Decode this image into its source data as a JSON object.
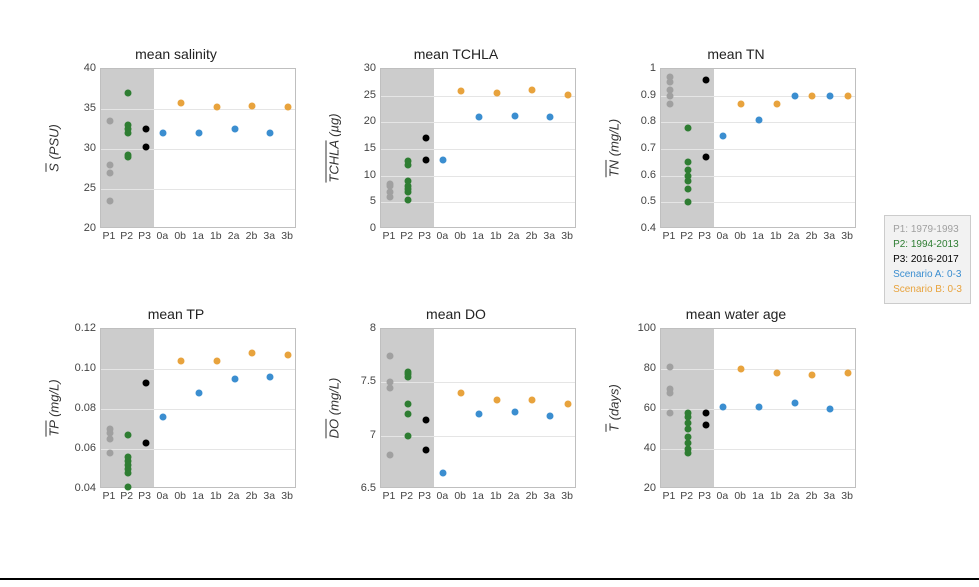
{
  "colors": {
    "p1": "#a0a0a0",
    "p2": "#2e7d32",
    "p3": "#000000",
    "scenA": "#3b8ed0",
    "scenB": "#e8a33d",
    "grid": "#e5e5e5",
    "axis": "#bfbfbf",
    "shade": "#bfbfbf"
  },
  "categories": [
    "P1",
    "P2",
    "P3",
    "0a",
    "0b",
    "1a",
    "1b",
    "2a",
    "2b",
    "3a",
    "3b"
  ],
  "shade_cats": 3,
  "legend": [
    {
      "label": "P1: 1979-1993",
      "color": "#a0a0a0"
    },
    {
      "label": "P2: 1994-2013",
      "color": "#2e7d32"
    },
    {
      "label": "P3: 2016-2017",
      "color": "#000000"
    },
    {
      "label": "Scenario A: 0-3",
      "color": "#3b8ed0"
    },
    {
      "label": "Scenario B: 0-3",
      "color": "#e8a33d"
    }
  ],
  "panels": [
    {
      "title": "mean salinity",
      "ylabel_bar": "S",
      "ylabel_unit": "(PSU)",
      "ylim": [
        20,
        40
      ],
      "ytick_step": 5,
      "points": [
        {
          "cat": "P1",
          "y": 23.5,
          "c": "p1"
        },
        {
          "cat": "P1",
          "y": 27.0,
          "c": "p1"
        },
        {
          "cat": "P1",
          "y": 28.0,
          "c": "p1"
        },
        {
          "cat": "P1",
          "y": 33.5,
          "c": "p1"
        },
        {
          "cat": "P2",
          "y": 29.0,
          "c": "p2"
        },
        {
          "cat": "P2",
          "y": 29.3,
          "c": "p2"
        },
        {
          "cat": "P2",
          "y": 32.0,
          "c": "p2"
        },
        {
          "cat": "P2",
          "y": 32.5,
          "c": "p2"
        },
        {
          "cat": "P2",
          "y": 33.0,
          "c": "p2"
        },
        {
          "cat": "P2",
          "y": 37.0,
          "c": "p2"
        },
        {
          "cat": "P3",
          "y": 30.2,
          "c": "p3"
        },
        {
          "cat": "P3",
          "y": 32.5,
          "c": "p3"
        },
        {
          "cat": "0a",
          "y": 32.0,
          "c": "scenA"
        },
        {
          "cat": "0b",
          "y": 35.8,
          "c": "scenB"
        },
        {
          "cat": "1a",
          "y": 32.0,
          "c": "scenA"
        },
        {
          "cat": "1b",
          "y": 35.2,
          "c": "scenB"
        },
        {
          "cat": "2a",
          "y": 32.5,
          "c": "scenA"
        },
        {
          "cat": "2b",
          "y": 35.4,
          "c": "scenB"
        },
        {
          "cat": "3a",
          "y": 32.0,
          "c": "scenA"
        },
        {
          "cat": "3b",
          "y": 35.3,
          "c": "scenB"
        }
      ]
    },
    {
      "title": "mean TCHLA",
      "ylabel_bar": "TCHLA",
      "ylabel_unit": "(µg)",
      "ylim": [
        0,
        30
      ],
      "ytick_step": 5,
      "points": [
        {
          "cat": "P1",
          "y": 6.0,
          "c": "p1"
        },
        {
          "cat": "P1",
          "y": 7.0,
          "c": "p1"
        },
        {
          "cat": "P1",
          "y": 8.0,
          "c": "p1"
        },
        {
          "cat": "P1",
          "y": 8.5,
          "c": "p1"
        },
        {
          "cat": "P2",
          "y": 5.5,
          "c": "p2"
        },
        {
          "cat": "P2",
          "y": 7.0,
          "c": "p2"
        },
        {
          "cat": "P2",
          "y": 7.5,
          "c": "p2"
        },
        {
          "cat": "P2",
          "y": 8.0,
          "c": "p2"
        },
        {
          "cat": "P2",
          "y": 9.0,
          "c": "p2"
        },
        {
          "cat": "P2",
          "y": 12.0,
          "c": "p2"
        },
        {
          "cat": "P2",
          "y": 12.8,
          "c": "p2"
        },
        {
          "cat": "P3",
          "y": 13.0,
          "c": "p3"
        },
        {
          "cat": "P3",
          "y": 17.0,
          "c": "p3"
        },
        {
          "cat": "0a",
          "y": 13.0,
          "c": "scenA"
        },
        {
          "cat": "0b",
          "y": 25.8,
          "c": "scenB"
        },
        {
          "cat": "1a",
          "y": 21.0,
          "c": "scenA"
        },
        {
          "cat": "1b",
          "y": 25.5,
          "c": "scenB"
        },
        {
          "cat": "2a",
          "y": 21.2,
          "c": "scenA"
        },
        {
          "cat": "2b",
          "y": 26.0,
          "c": "scenB"
        },
        {
          "cat": "3a",
          "y": 21.0,
          "c": "scenA"
        },
        {
          "cat": "3b",
          "y": 25.2,
          "c": "scenB"
        }
      ]
    },
    {
      "title": "mean TN",
      "ylabel_bar": "TN",
      "ylabel_unit": "(mg/L)",
      "ylim": [
        0.4,
        1.0
      ],
      "ytick_step": 0.1,
      "points": [
        {
          "cat": "P1",
          "y": 0.87,
          "c": "p1"
        },
        {
          "cat": "P1",
          "y": 0.9,
          "c": "p1"
        },
        {
          "cat": "P1",
          "y": 0.92,
          "c": "p1"
        },
        {
          "cat": "P1",
          "y": 0.95,
          "c": "p1"
        },
        {
          "cat": "P1",
          "y": 0.97,
          "c": "p1"
        },
        {
          "cat": "P2",
          "y": 0.5,
          "c": "p2"
        },
        {
          "cat": "P2",
          "y": 0.55,
          "c": "p2"
        },
        {
          "cat": "P2",
          "y": 0.58,
          "c": "p2"
        },
        {
          "cat": "P2",
          "y": 0.6,
          "c": "p2"
        },
        {
          "cat": "P2",
          "y": 0.62,
          "c": "p2"
        },
        {
          "cat": "P2",
          "y": 0.65,
          "c": "p2"
        },
        {
          "cat": "P2",
          "y": 0.78,
          "c": "p2"
        },
        {
          "cat": "P3",
          "y": 0.67,
          "c": "p3"
        },
        {
          "cat": "P3",
          "y": 0.96,
          "c": "p3"
        },
        {
          "cat": "0a",
          "y": 0.75,
          "c": "scenA"
        },
        {
          "cat": "0b",
          "y": 0.87,
          "c": "scenB"
        },
        {
          "cat": "1a",
          "y": 0.81,
          "c": "scenA"
        },
        {
          "cat": "1b",
          "y": 0.87,
          "c": "scenB"
        },
        {
          "cat": "2a",
          "y": 0.9,
          "c": "scenA"
        },
        {
          "cat": "2b",
          "y": 0.9,
          "c": "scenB"
        },
        {
          "cat": "3a",
          "y": 0.9,
          "c": "scenA"
        },
        {
          "cat": "3b",
          "y": 0.9,
          "c": "scenB"
        }
      ]
    },
    {
      "title": "mean TP",
      "ylabel_bar": "TP",
      "ylabel_unit": "(mg/L)",
      "ylim": [
        0.04,
        0.12
      ],
      "ytick_step": 0.02,
      "points": [
        {
          "cat": "P1",
          "y": 0.058,
          "c": "p1"
        },
        {
          "cat": "P1",
          "y": 0.065,
          "c": "p1"
        },
        {
          "cat": "P1",
          "y": 0.068,
          "c": "p1"
        },
        {
          "cat": "P1",
          "y": 0.07,
          "c": "p1"
        },
        {
          "cat": "P2",
          "y": 0.041,
          "c": "p2"
        },
        {
          "cat": "P2",
          "y": 0.048,
          "c": "p2"
        },
        {
          "cat": "P2",
          "y": 0.05,
          "c": "p2"
        },
        {
          "cat": "P2",
          "y": 0.052,
          "c": "p2"
        },
        {
          "cat": "P2",
          "y": 0.054,
          "c": "p2"
        },
        {
          "cat": "P2",
          "y": 0.056,
          "c": "p2"
        },
        {
          "cat": "P2",
          "y": 0.067,
          "c": "p2"
        },
        {
          "cat": "P3",
          "y": 0.063,
          "c": "p3"
        },
        {
          "cat": "P3",
          "y": 0.093,
          "c": "p3"
        },
        {
          "cat": "0a",
          "y": 0.076,
          "c": "scenA"
        },
        {
          "cat": "0b",
          "y": 0.104,
          "c": "scenB"
        },
        {
          "cat": "1a",
          "y": 0.088,
          "c": "scenA"
        },
        {
          "cat": "1b",
          "y": 0.104,
          "c": "scenB"
        },
        {
          "cat": "2a",
          "y": 0.095,
          "c": "scenA"
        },
        {
          "cat": "2b",
          "y": 0.108,
          "c": "scenB"
        },
        {
          "cat": "3a",
          "y": 0.096,
          "c": "scenA"
        },
        {
          "cat": "3b",
          "y": 0.107,
          "c": "scenB"
        }
      ]
    },
    {
      "title": "mean DO",
      "ylabel_bar": "DO",
      "ylabel_unit": "(mg/L)",
      "ylim": [
        6.5,
        8.0
      ],
      "ytick_step": 0.5,
      "points": [
        {
          "cat": "P1",
          "y": 6.82,
          "c": "p1"
        },
        {
          "cat": "P1",
          "y": 7.45,
          "c": "p1"
        },
        {
          "cat": "P1",
          "y": 7.5,
          "c": "p1"
        },
        {
          "cat": "P1",
          "y": 7.75,
          "c": "p1"
        },
        {
          "cat": "P2",
          "y": 7.0,
          "c": "p2"
        },
        {
          "cat": "P2",
          "y": 7.2,
          "c": "p2"
        },
        {
          "cat": "P2",
          "y": 7.3,
          "c": "p2"
        },
        {
          "cat": "P2",
          "y": 7.55,
          "c": "p2"
        },
        {
          "cat": "P2",
          "y": 7.58,
          "c": "p2"
        },
        {
          "cat": "P2",
          "y": 7.6,
          "c": "p2"
        },
        {
          "cat": "P3",
          "y": 6.87,
          "c": "p3"
        },
        {
          "cat": "P3",
          "y": 7.15,
          "c": "p3"
        },
        {
          "cat": "0a",
          "y": 6.65,
          "c": "scenA"
        },
        {
          "cat": "0b",
          "y": 7.4,
          "c": "scenB"
        },
        {
          "cat": "1a",
          "y": 7.2,
          "c": "scenA"
        },
        {
          "cat": "1b",
          "y": 7.33,
          "c": "scenB"
        },
        {
          "cat": "2a",
          "y": 7.22,
          "c": "scenA"
        },
        {
          "cat": "2b",
          "y": 7.33,
          "c": "scenB"
        },
        {
          "cat": "3a",
          "y": 7.18,
          "c": "scenA"
        },
        {
          "cat": "3b",
          "y": 7.3,
          "c": "scenB"
        }
      ]
    },
    {
      "title": "mean water age",
      "ylabel_bar": "T",
      "ylabel_unit": "(days)",
      "ylim": [
        20,
        100
      ],
      "ytick_step": 20,
      "points": [
        {
          "cat": "P1",
          "y": 58,
          "c": "p1"
        },
        {
          "cat": "P1",
          "y": 68,
          "c": "p1"
        },
        {
          "cat": "P1",
          "y": 70,
          "c": "p1"
        },
        {
          "cat": "P1",
          "y": 81,
          "c": "p1"
        },
        {
          "cat": "P2",
          "y": 38,
          "c": "p2"
        },
        {
          "cat": "P2",
          "y": 40,
          "c": "p2"
        },
        {
          "cat": "P2",
          "y": 43,
          "c": "p2"
        },
        {
          "cat": "P2",
          "y": 46,
          "c": "p2"
        },
        {
          "cat": "P2",
          "y": 50,
          "c": "p2"
        },
        {
          "cat": "P2",
          "y": 53,
          "c": "p2"
        },
        {
          "cat": "P2",
          "y": 56,
          "c": "p2"
        },
        {
          "cat": "P2",
          "y": 58,
          "c": "p2"
        },
        {
          "cat": "P3",
          "y": 52,
          "c": "p3"
        },
        {
          "cat": "P3",
          "y": 58,
          "c": "p3"
        },
        {
          "cat": "0a",
          "y": 61,
          "c": "scenA"
        },
        {
          "cat": "0b",
          "y": 80,
          "c": "scenB"
        },
        {
          "cat": "1a",
          "y": 61,
          "c": "scenA"
        },
        {
          "cat": "1b",
          "y": 78,
          "c": "scenB"
        },
        {
          "cat": "2a",
          "y": 63,
          "c": "scenA"
        },
        {
          "cat": "2b",
          "y": 77,
          "c": "scenB"
        },
        {
          "cat": "3a",
          "y": 60,
          "c": "scenA"
        },
        {
          "cat": "3b",
          "y": 78,
          "c": "scenB"
        }
      ]
    }
  ]
}
